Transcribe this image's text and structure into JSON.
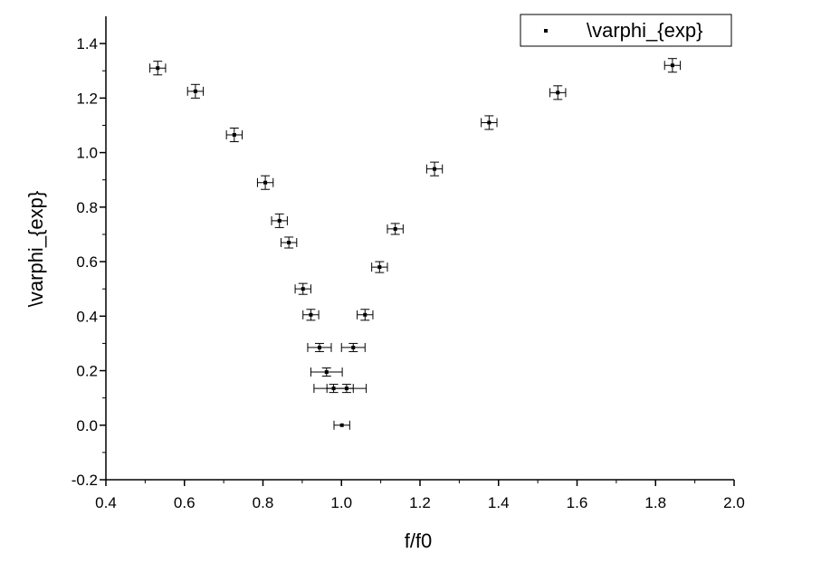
{
  "chart_data": {
    "type": "scatter",
    "xlabel": "f/f0",
    "ylabel": "\\varphi_{exp}",
    "xlim": [
      0.4,
      2.0
    ],
    "ylim": [
      -0.2,
      1.5
    ],
    "x_ticks": [
      0.4,
      0.6,
      0.8,
      1.0,
      1.2,
      1.4,
      1.6,
      1.8,
      2.0
    ],
    "x_tick_labels": [
      "0.4",
      "0.6",
      "0.8",
      "1.0",
      "1.2",
      "1.4",
      "1.6",
      "1.8",
      "2.0"
    ],
    "y_ticks": [
      -0.2,
      0.0,
      0.2,
      0.4,
      0.6,
      0.8,
      1.0,
      1.2,
      1.4
    ],
    "y_tick_labels": [
      "-0.2",
      "0.0",
      "0.2",
      "0.4",
      "0.6",
      "0.8",
      "1.0",
      "1.2",
      "1.4"
    ],
    "grid": false,
    "legend_position": "top-right",
    "series": [
      {
        "name": "\\varphi_{exp}",
        "color": "#000000",
        "points": [
          {
            "x": 0.532,
            "y": 1.31,
            "xerr": 0.02,
            "yerr": 0.025
          },
          {
            "x": 0.628,
            "y": 1.225,
            "xerr": 0.02,
            "yerr": 0.025
          },
          {
            "x": 0.727,
            "y": 1.065,
            "xerr": 0.02,
            "yerr": 0.025
          },
          {
            "x": 0.806,
            "y": 0.89,
            "xerr": 0.02,
            "yerr": 0.025
          },
          {
            "x": 0.842,
            "y": 0.75,
            "xerr": 0.02,
            "yerr": 0.025
          },
          {
            "x": 0.866,
            "y": 0.67,
            "xerr": 0.02,
            "yerr": 0.02
          },
          {
            "x": 0.902,
            "y": 0.5,
            "xerr": 0.02,
            "yerr": 0.02
          },
          {
            "x": 0.922,
            "y": 0.405,
            "xerr": 0.02,
            "yerr": 0.02
          },
          {
            "x": 0.944,
            "y": 0.285,
            "xerr": 0.03,
            "yerr": 0.015
          },
          {
            "x": 0.962,
            "y": 0.195,
            "xerr": 0.04,
            "yerr": 0.015
          },
          {
            "x": 0.98,
            "y": 0.135,
            "xerr": 0.05,
            "yerr": 0.015
          },
          {
            "x": 1.001,
            "y": 0.0,
            "xerr": 0.02,
            "yerr": 0.0
          },
          {
            "x": 1.013,
            "y": 0.135,
            "xerr": 0.05,
            "yerr": 0.015
          },
          {
            "x": 1.03,
            "y": 0.285,
            "xerr": 0.03,
            "yerr": 0.015
          },
          {
            "x": 1.06,
            "y": 0.405,
            "xerr": 0.02,
            "yerr": 0.02
          },
          {
            "x": 1.097,
            "y": 0.58,
            "xerr": 0.02,
            "yerr": 0.02
          },
          {
            "x": 1.137,
            "y": 0.72,
            "xerr": 0.02,
            "yerr": 0.02
          },
          {
            "x": 1.237,
            "y": 0.94,
            "xerr": 0.02,
            "yerr": 0.025
          },
          {
            "x": 1.376,
            "y": 1.11,
            "xerr": 0.02,
            "yerr": 0.025
          },
          {
            "x": 1.551,
            "y": 1.22,
            "xerr": 0.02,
            "yerr": 0.025
          },
          {
            "x": 1.843,
            "y": 1.32,
            "xerr": 0.02,
            "yerr": 0.025
          }
        ]
      }
    ]
  }
}
